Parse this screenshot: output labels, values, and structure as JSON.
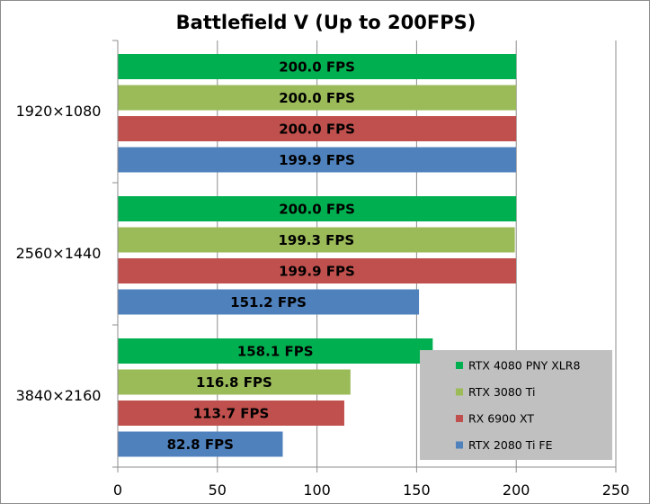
{
  "chart_data": {
    "type": "bar",
    "orientation": "horizontal",
    "title": "Battlefield V (Up to 200FPS)",
    "xlabel": "",
    "ylabel": "",
    "xlim": [
      0,
      250
    ],
    "xticks": [
      0,
      50,
      100,
      150,
      200,
      250
    ],
    "grid": "vertical",
    "legend_position": "bottom-right",
    "categories": [
      "1920×1080",
      "2560×1440",
      "3840×2160"
    ],
    "value_suffix": " FPS",
    "series": [
      {
        "name": "RTX 4080 PNY XLR8",
        "color": "#00b050",
        "values": [
          200.0,
          200.0,
          158.1
        ]
      },
      {
        "name": "RTX 3080 Ti",
        "color": "#9bbb59",
        "values": [
          200.0,
          199.3,
          116.8
        ]
      },
      {
        "name": "RX 6900 XT",
        "color": "#c0504d",
        "values": [
          200.0,
          199.9,
          113.7
        ]
      },
      {
        "name": "RTX 2080 Ti FE",
        "color": "#4f81bd",
        "values": [
          199.9,
          151.2,
          82.8
        ]
      }
    ],
    "legend_background": "#c0c0c0"
  }
}
